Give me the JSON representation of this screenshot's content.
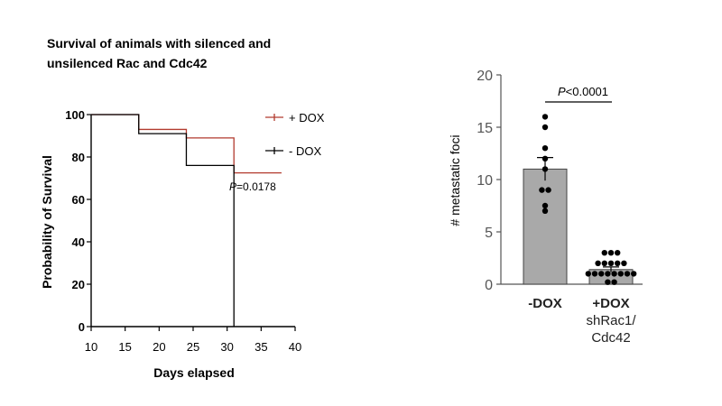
{
  "chart_data": [
    {
      "type": "line",
      "subtype": "kaplan-meier-step",
      "title_line1": "Survival of animals with silenced and",
      "title_line2": "unsilenced Rac and Cdc42",
      "xlabel": "Days elapsed",
      "ylabel": "Probability of Survival",
      "xlim": [
        10,
        40
      ],
      "ylim": [
        0,
        100
      ],
      "xticks": [
        10,
        15,
        20,
        25,
        30,
        35,
        40
      ],
      "yticks": [
        0,
        20,
        40,
        60,
        80,
        100
      ],
      "legend_placement": "top-right",
      "series": [
        {
          "name": "+ DOX",
          "color": "#b23a2e",
          "x": [
            10,
            17,
            17,
            24,
            24,
            31,
            31,
            38
          ],
          "y": [
            100,
            100,
            93,
            93,
            89,
            89,
            72.5,
            72.5
          ]
        },
        {
          "name": "- DOX",
          "color": "#000000",
          "x": [
            10,
            17,
            17,
            24,
            24,
            31,
            31
          ],
          "y": [
            100,
            100,
            91,
            91,
            76,
            76,
            0
          ]
        }
      ],
      "annotation": {
        "p_symbol": "P",
        "p_value_text": "=0.0178",
        "x": 33.5,
        "y": 66
      }
    },
    {
      "type": "bar",
      "subtype": "bar-with-dots",
      "ylabel": "# metastatic foci",
      "ylim": [
        0,
        20
      ],
      "yticks": [
        0,
        5,
        10,
        15,
        20
      ],
      "bar_color": "#a9a9a9",
      "groups": [
        {
          "label_lines": [
            "-DOX"
          ],
          "mean": 11,
          "sem": 1.1,
          "points": [
            16,
            15,
            13,
            12,
            11,
            9,
            9,
            7.5,
            7
          ]
        },
        {
          "label_lines": [
            "+DOX",
            "shRac1/",
            "Cdc42"
          ],
          "mean": 1.4,
          "sem": 0.25,
          "points": [
            3,
            3,
            3,
            2,
            2,
            2,
            2,
            2,
            1,
            1,
            1,
            1,
            1,
            1,
            1,
            1,
            0.2,
            0.2
          ]
        }
      ],
      "significance": {
        "p_symbol": "P",
        "p_value_text": "<0.0001"
      }
    }
  ]
}
